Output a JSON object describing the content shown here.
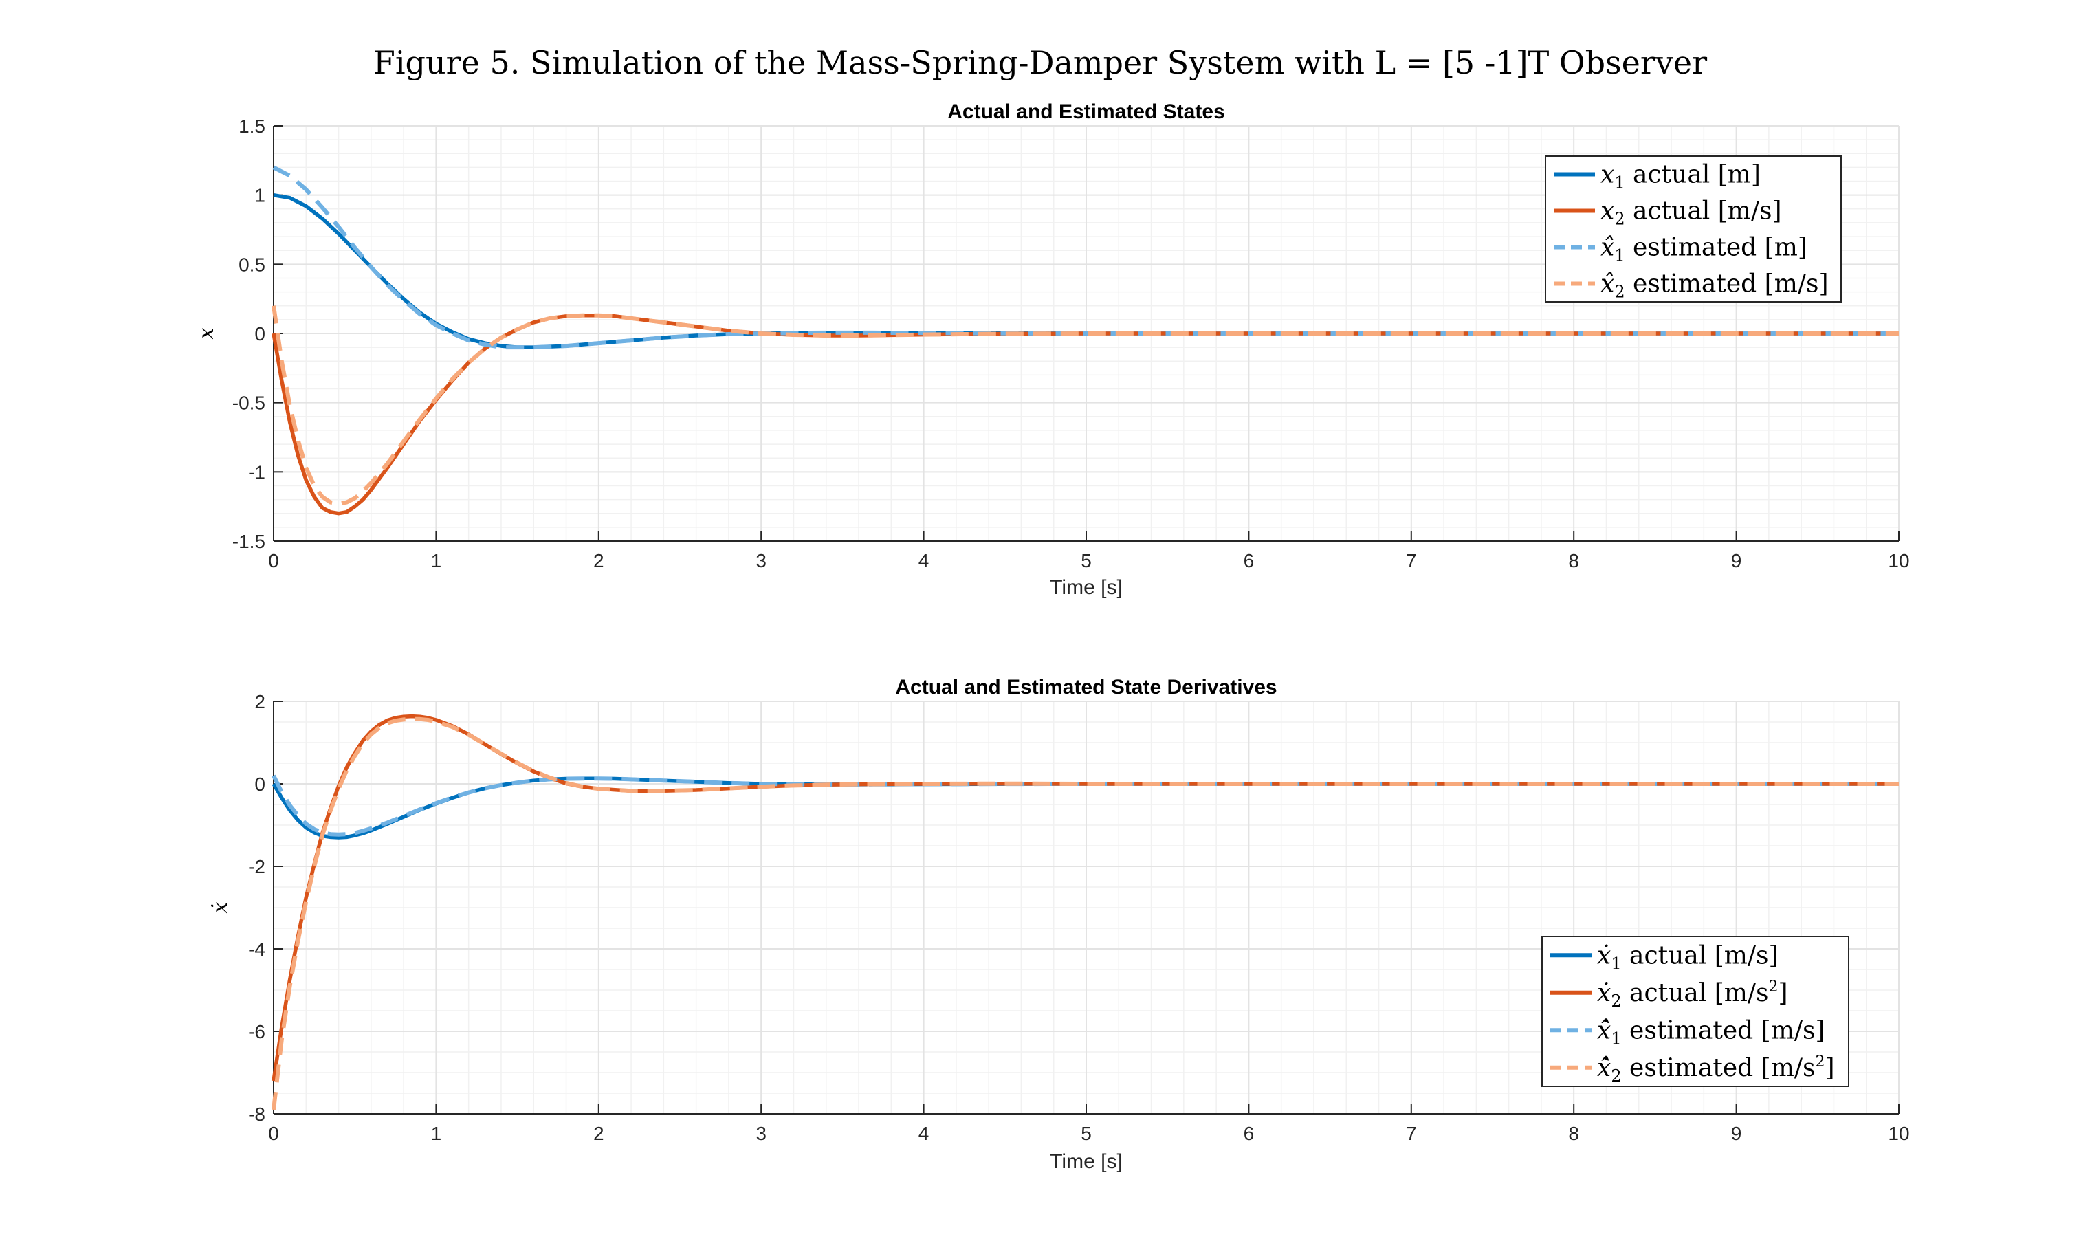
{
  "figure_title": "Figure 5. Simulation of the Mass-Spring-Damper System with L = [5 -1]T Observer",
  "colors": {
    "actual_x1": "#0072BD",
    "actual_x2": "#D95319",
    "est_x1": "#6FB1E3",
    "est_x2": "#F7A97B",
    "grid": "#E3E3E3",
    "axis": "#262626"
  },
  "chart_data": [
    {
      "type": "line",
      "title": "Actual and Estimated States",
      "xlabel": "Time [s]",
      "ylabel": "x",
      "xlim": [
        0,
        10
      ],
      "ylim": [
        -1.5,
        1.5
      ],
      "xticks": [
        0,
        1,
        2,
        3,
        4,
        5,
        6,
        7,
        8,
        9,
        10
      ],
      "xtick_labels": [
        "0",
        "1",
        "2",
        "3",
        "4",
        "5",
        "6",
        "7",
        "8",
        "9",
        "10"
      ],
      "yticks": [
        -1.5,
        -1,
        -0.5,
        0,
        0.5,
        1,
        1.5
      ],
      "ytick_labels": [
        "-1.5",
        "-1",
        "-0.5",
        "0",
        "0.5",
        "1",
        "1.5"
      ],
      "grid": "on (major and minor)",
      "legend_position": "top-right",
      "series": [
        {
          "name": "x1 actual [m]",
          "label_main": "x",
          "label_sub": "1",
          "label_rest": " actual [m]",
          "style": "solid",
          "color_key": "actual_x1",
          "x": [
            0,
            0.1,
            0.2,
            0.3,
            0.4,
            0.5,
            0.6,
            0.7,
            0.8,
            0.9,
            1.0,
            1.1,
            1.2,
            1.3,
            1.4,
            1.5,
            1.6,
            1.8,
            2.0,
            2.2,
            2.4,
            2.6,
            2.8,
            3.0,
            3.3,
            3.6,
            4.0,
            4.5,
            5,
            6,
            7,
            8,
            9,
            10
          ],
          "y": [
            1.0,
            0.98,
            0.92,
            0.83,
            0.72,
            0.6,
            0.48,
            0.36,
            0.25,
            0.15,
            0.07,
            0.01,
            -0.04,
            -0.07,
            -0.09,
            -0.1,
            -0.1,
            -0.09,
            -0.07,
            -0.05,
            -0.03,
            -0.015,
            -0.005,
            0.0,
            0.005,
            0.006,
            0.004,
            0.001,
            0,
            0,
            0,
            0,
            0,
            0
          ]
        },
        {
          "name": "x2 actual [m/s]",
          "label_main": "x",
          "label_sub": "2",
          "label_rest": " actual [m/s]",
          "style": "solid",
          "color_key": "actual_x2",
          "x": [
            0,
            0.05,
            0.1,
            0.15,
            0.2,
            0.25,
            0.3,
            0.35,
            0.4,
            0.45,
            0.5,
            0.55,
            0.6,
            0.7,
            0.8,
            0.9,
            1.0,
            1.1,
            1.2,
            1.3,
            1.4,
            1.5,
            1.6,
            1.7,
            1.8,
            1.9,
            2.0,
            2.1,
            2.2,
            2.4,
            2.6,
            2.8,
            3.0,
            3.2,
            3.4,
            3.6,
            3.8,
            4.0,
            4.5,
            5,
            6,
            7,
            8,
            9,
            10
          ],
          "y": [
            0,
            -0.34,
            -0.64,
            -0.88,
            -1.06,
            -1.18,
            -1.26,
            -1.29,
            -1.3,
            -1.29,
            -1.25,
            -1.2,
            -1.13,
            -0.97,
            -0.8,
            -0.63,
            -0.48,
            -0.34,
            -0.21,
            -0.11,
            -0.03,
            0.03,
            0.08,
            0.11,
            0.125,
            0.13,
            0.13,
            0.125,
            0.11,
            0.08,
            0.05,
            0.02,
            0.0,
            -0.01,
            -0.015,
            -0.015,
            -0.012,
            -0.008,
            -0.002,
            0,
            0,
            0,
            0,
            0,
            0
          ]
        },
        {
          "name": "x̂1 estimated [m]",
          "label_main": "x̂",
          "label_sub": "1",
          "label_rest": " estimated [m]",
          "style": "dashed",
          "color_key": "est_x1",
          "x": [
            0,
            0.1,
            0.2,
            0.3,
            0.4,
            0.5,
            0.6,
            0.7,
            0.8,
            0.9,
            1.0,
            1.1,
            1.2,
            1.3,
            1.4,
            1.5,
            1.6,
            1.8,
            2.0,
            2.2,
            2.4,
            2.6,
            2.8,
            3.0,
            3.3,
            3.6,
            4.0,
            4.5,
            5,
            6,
            7,
            8,
            9,
            10
          ],
          "y": [
            1.2,
            1.14,
            1.04,
            0.91,
            0.77,
            0.62,
            0.48,
            0.35,
            0.24,
            0.14,
            0.06,
            0.0,
            -0.05,
            -0.08,
            -0.1,
            -0.1,
            -0.1,
            -0.09,
            -0.07,
            -0.05,
            -0.03,
            -0.015,
            -0.005,
            0.0,
            0.005,
            0.006,
            0.004,
            0.001,
            0,
            0,
            0,
            0,
            0,
            0
          ]
        },
        {
          "name": "x̂2 estimated [m/s]",
          "label_main": "x̂",
          "label_sub": "2",
          "label_rest": " estimated [m/s]",
          "style": "dashed",
          "color_key": "est_x2",
          "x": [
            0,
            0.05,
            0.1,
            0.15,
            0.2,
            0.25,
            0.3,
            0.35,
            0.4,
            0.45,
            0.5,
            0.55,
            0.6,
            0.7,
            0.8,
            0.9,
            1.0,
            1.1,
            1.2,
            1.3,
            1.4,
            1.5,
            1.6,
            1.7,
            1.8,
            1.9,
            2.0,
            2.1,
            2.2,
            2.4,
            2.6,
            2.8,
            3.0,
            3.2,
            3.4,
            3.6,
            3.8,
            4.0,
            4.5,
            5,
            6,
            7,
            8,
            9,
            10
          ],
          "y": [
            0.2,
            -0.2,
            -0.52,
            -0.77,
            -0.97,
            -1.1,
            -1.18,
            -1.22,
            -1.23,
            -1.22,
            -1.19,
            -1.14,
            -1.08,
            -0.94,
            -0.78,
            -0.62,
            -0.47,
            -0.33,
            -0.21,
            -0.11,
            -0.03,
            0.03,
            0.08,
            0.11,
            0.125,
            0.13,
            0.13,
            0.125,
            0.11,
            0.08,
            0.05,
            0.02,
            0.0,
            -0.01,
            -0.015,
            -0.015,
            -0.012,
            -0.008,
            -0.002,
            0,
            0,
            0,
            0,
            0,
            0
          ]
        }
      ]
    },
    {
      "type": "line",
      "title": "Actual and Estimated State Derivatives",
      "xlabel": "Time [s]",
      "ylabel": "ẋ",
      "xlim": [
        0,
        10
      ],
      "ylim": [
        -8,
        2
      ],
      "xticks": [
        0,
        1,
        2,
        3,
        4,
        5,
        6,
        7,
        8,
        9,
        10
      ],
      "xtick_labels": [
        "0",
        "1",
        "2",
        "3",
        "4",
        "5",
        "6",
        "7",
        "8",
        "9",
        "10"
      ],
      "yticks": [
        -8,
        -6,
        -4,
        -2,
        0,
        2
      ],
      "ytick_labels": [
        "-8",
        "-6",
        "-4",
        "-2",
        "0",
        "2"
      ],
      "grid": "on (major and minor)",
      "legend_position": "bottom-right",
      "series": [
        {
          "name": "ẋ1 actual [m/s]",
          "label_main": "ẋ",
          "label_sub": "1",
          "label_rest": " actual [m/s]",
          "label_sup": "",
          "label_tail": "",
          "style": "solid",
          "color_key": "actual_x1",
          "x": [
            0,
            0.05,
            0.1,
            0.15,
            0.2,
            0.25,
            0.3,
            0.35,
            0.4,
            0.45,
            0.5,
            0.55,
            0.6,
            0.7,
            0.8,
            0.9,
            1.0,
            1.1,
            1.2,
            1.3,
            1.4,
            1.5,
            1.6,
            1.7,
            1.8,
            1.9,
            2.0,
            2.1,
            2.2,
            2.4,
            2.6,
            2.8,
            3.0,
            3.2,
            3.4,
            3.6,
            3.8,
            4.0,
            4.5,
            5,
            6,
            7,
            8,
            9,
            10
          ],
          "y": [
            0,
            -0.34,
            -0.64,
            -0.88,
            -1.06,
            -1.18,
            -1.26,
            -1.29,
            -1.3,
            -1.29,
            -1.25,
            -1.2,
            -1.13,
            -0.97,
            -0.8,
            -0.63,
            -0.48,
            -0.34,
            -0.21,
            -0.11,
            -0.03,
            0.03,
            0.08,
            0.11,
            0.125,
            0.13,
            0.13,
            0.125,
            0.11,
            0.08,
            0.05,
            0.02,
            0.0,
            -0.01,
            -0.015,
            -0.015,
            -0.012,
            -0.008,
            -0.002,
            0,
            0,
            0,
            0,
            0,
            0
          ]
        },
        {
          "name": "ẋ2 actual [m/s2]",
          "label_main": "ẋ",
          "label_sub": "2",
          "label_rest": " actual [m/s",
          "label_sup": "2",
          "label_tail": "]",
          "style": "solid",
          "color_key": "actual_x2",
          "x": [
            0,
            0.05,
            0.1,
            0.15,
            0.2,
            0.25,
            0.3,
            0.35,
            0.4,
            0.45,
            0.5,
            0.55,
            0.6,
            0.65,
            0.7,
            0.75,
            0.8,
            0.85,
            0.9,
            0.95,
            1.0,
            1.1,
            1.2,
            1.3,
            1.4,
            1.5,
            1.6,
            1.7,
            1.8,
            1.9,
            2.0,
            2.2,
            2.4,
            2.6,
            2.8,
            3.0,
            3.2,
            3.4,
            3.6,
            4.0,
            4.5,
            5,
            6,
            7,
            8,
            9,
            10
          ],
          "y": [
            -7.2,
            -5.9,
            -4.75,
            -3.7,
            -2.75,
            -1.95,
            -1.2,
            -0.6,
            -0.05,
            0.4,
            0.75,
            1.05,
            1.27,
            1.43,
            1.54,
            1.6,
            1.63,
            1.64,
            1.63,
            1.6,
            1.55,
            1.4,
            1.2,
            0.96,
            0.72,
            0.5,
            0.3,
            0.14,
            0.01,
            -0.07,
            -0.12,
            -0.17,
            -0.17,
            -0.15,
            -0.11,
            -0.07,
            -0.04,
            -0.02,
            -0.01,
            0.0,
            0.005,
            0,
            0,
            0,
            0,
            0,
            0
          ]
        },
        {
          "name": "ẋ̂1 estimated [m/s]",
          "label_main": "ẋ̂",
          "label_sub": "1",
          "label_rest": " estimated [m/s]",
          "label_sup": "",
          "label_tail": "",
          "style": "dashed",
          "color_key": "est_x1",
          "x": [
            0,
            0.05,
            0.1,
            0.15,
            0.2,
            0.25,
            0.3,
            0.35,
            0.4,
            0.45,
            0.5,
            0.55,
            0.6,
            0.7,
            0.8,
            0.9,
            1.0,
            1.1,
            1.2,
            1.3,
            1.4,
            1.5,
            1.6,
            1.7,
            1.8,
            1.9,
            2.0,
            2.1,
            2.2,
            2.4,
            2.6,
            2.8,
            3.0,
            3.2,
            3.4,
            3.6,
            3.8,
            4.0,
            4.5,
            5,
            6,
            7,
            8,
            9,
            10
          ],
          "y": [
            0.2,
            -0.2,
            -0.52,
            -0.77,
            -0.97,
            -1.1,
            -1.18,
            -1.22,
            -1.23,
            -1.22,
            -1.19,
            -1.14,
            -1.08,
            -0.94,
            -0.78,
            -0.62,
            -0.47,
            -0.33,
            -0.21,
            -0.11,
            -0.03,
            0.03,
            0.08,
            0.11,
            0.125,
            0.13,
            0.13,
            0.125,
            0.11,
            0.08,
            0.05,
            0.02,
            0.0,
            -0.01,
            -0.015,
            -0.015,
            -0.012,
            -0.008,
            -0.002,
            0,
            0,
            0,
            0,
            0,
            0
          ]
        },
        {
          "name": "ẋ̂2 estimated [m/s2]",
          "label_main": "ẋ̂",
          "label_sub": "2",
          "label_rest": " estimated [m/s",
          "label_sup": "2",
          "label_tail": "]",
          "style": "dashed",
          "color_key": "est_x2",
          "x": [
            0,
            0.05,
            0.1,
            0.15,
            0.2,
            0.25,
            0.3,
            0.35,
            0.4,
            0.45,
            0.5,
            0.55,
            0.6,
            0.65,
            0.7,
            0.75,
            0.8,
            0.85,
            0.9,
            0.95,
            1.0,
            1.1,
            1.2,
            1.3,
            1.4,
            1.5,
            1.6,
            1.7,
            1.8,
            1.9,
            2.0,
            2.2,
            2.4,
            2.6,
            2.8,
            3.0,
            3.2,
            3.4,
            3.6,
            4.0,
            4.5,
            5,
            6,
            7,
            8,
            9,
            10
          ],
          "y": [
            -7.9,
            -6.2,
            -4.9,
            -3.8,
            -2.85,
            -2.0,
            -1.25,
            -0.65,
            -0.12,
            0.33,
            0.68,
            0.98,
            1.2,
            1.36,
            1.47,
            1.53,
            1.56,
            1.57,
            1.57,
            1.55,
            1.51,
            1.38,
            1.19,
            0.96,
            0.73,
            0.51,
            0.31,
            0.15,
            0.02,
            -0.07,
            -0.12,
            -0.17,
            -0.17,
            -0.15,
            -0.11,
            -0.07,
            -0.04,
            -0.02,
            -0.01,
            0.0,
            0.005,
            0,
            0,
            0,
            0,
            0,
            0
          ]
        }
      ]
    }
  ]
}
